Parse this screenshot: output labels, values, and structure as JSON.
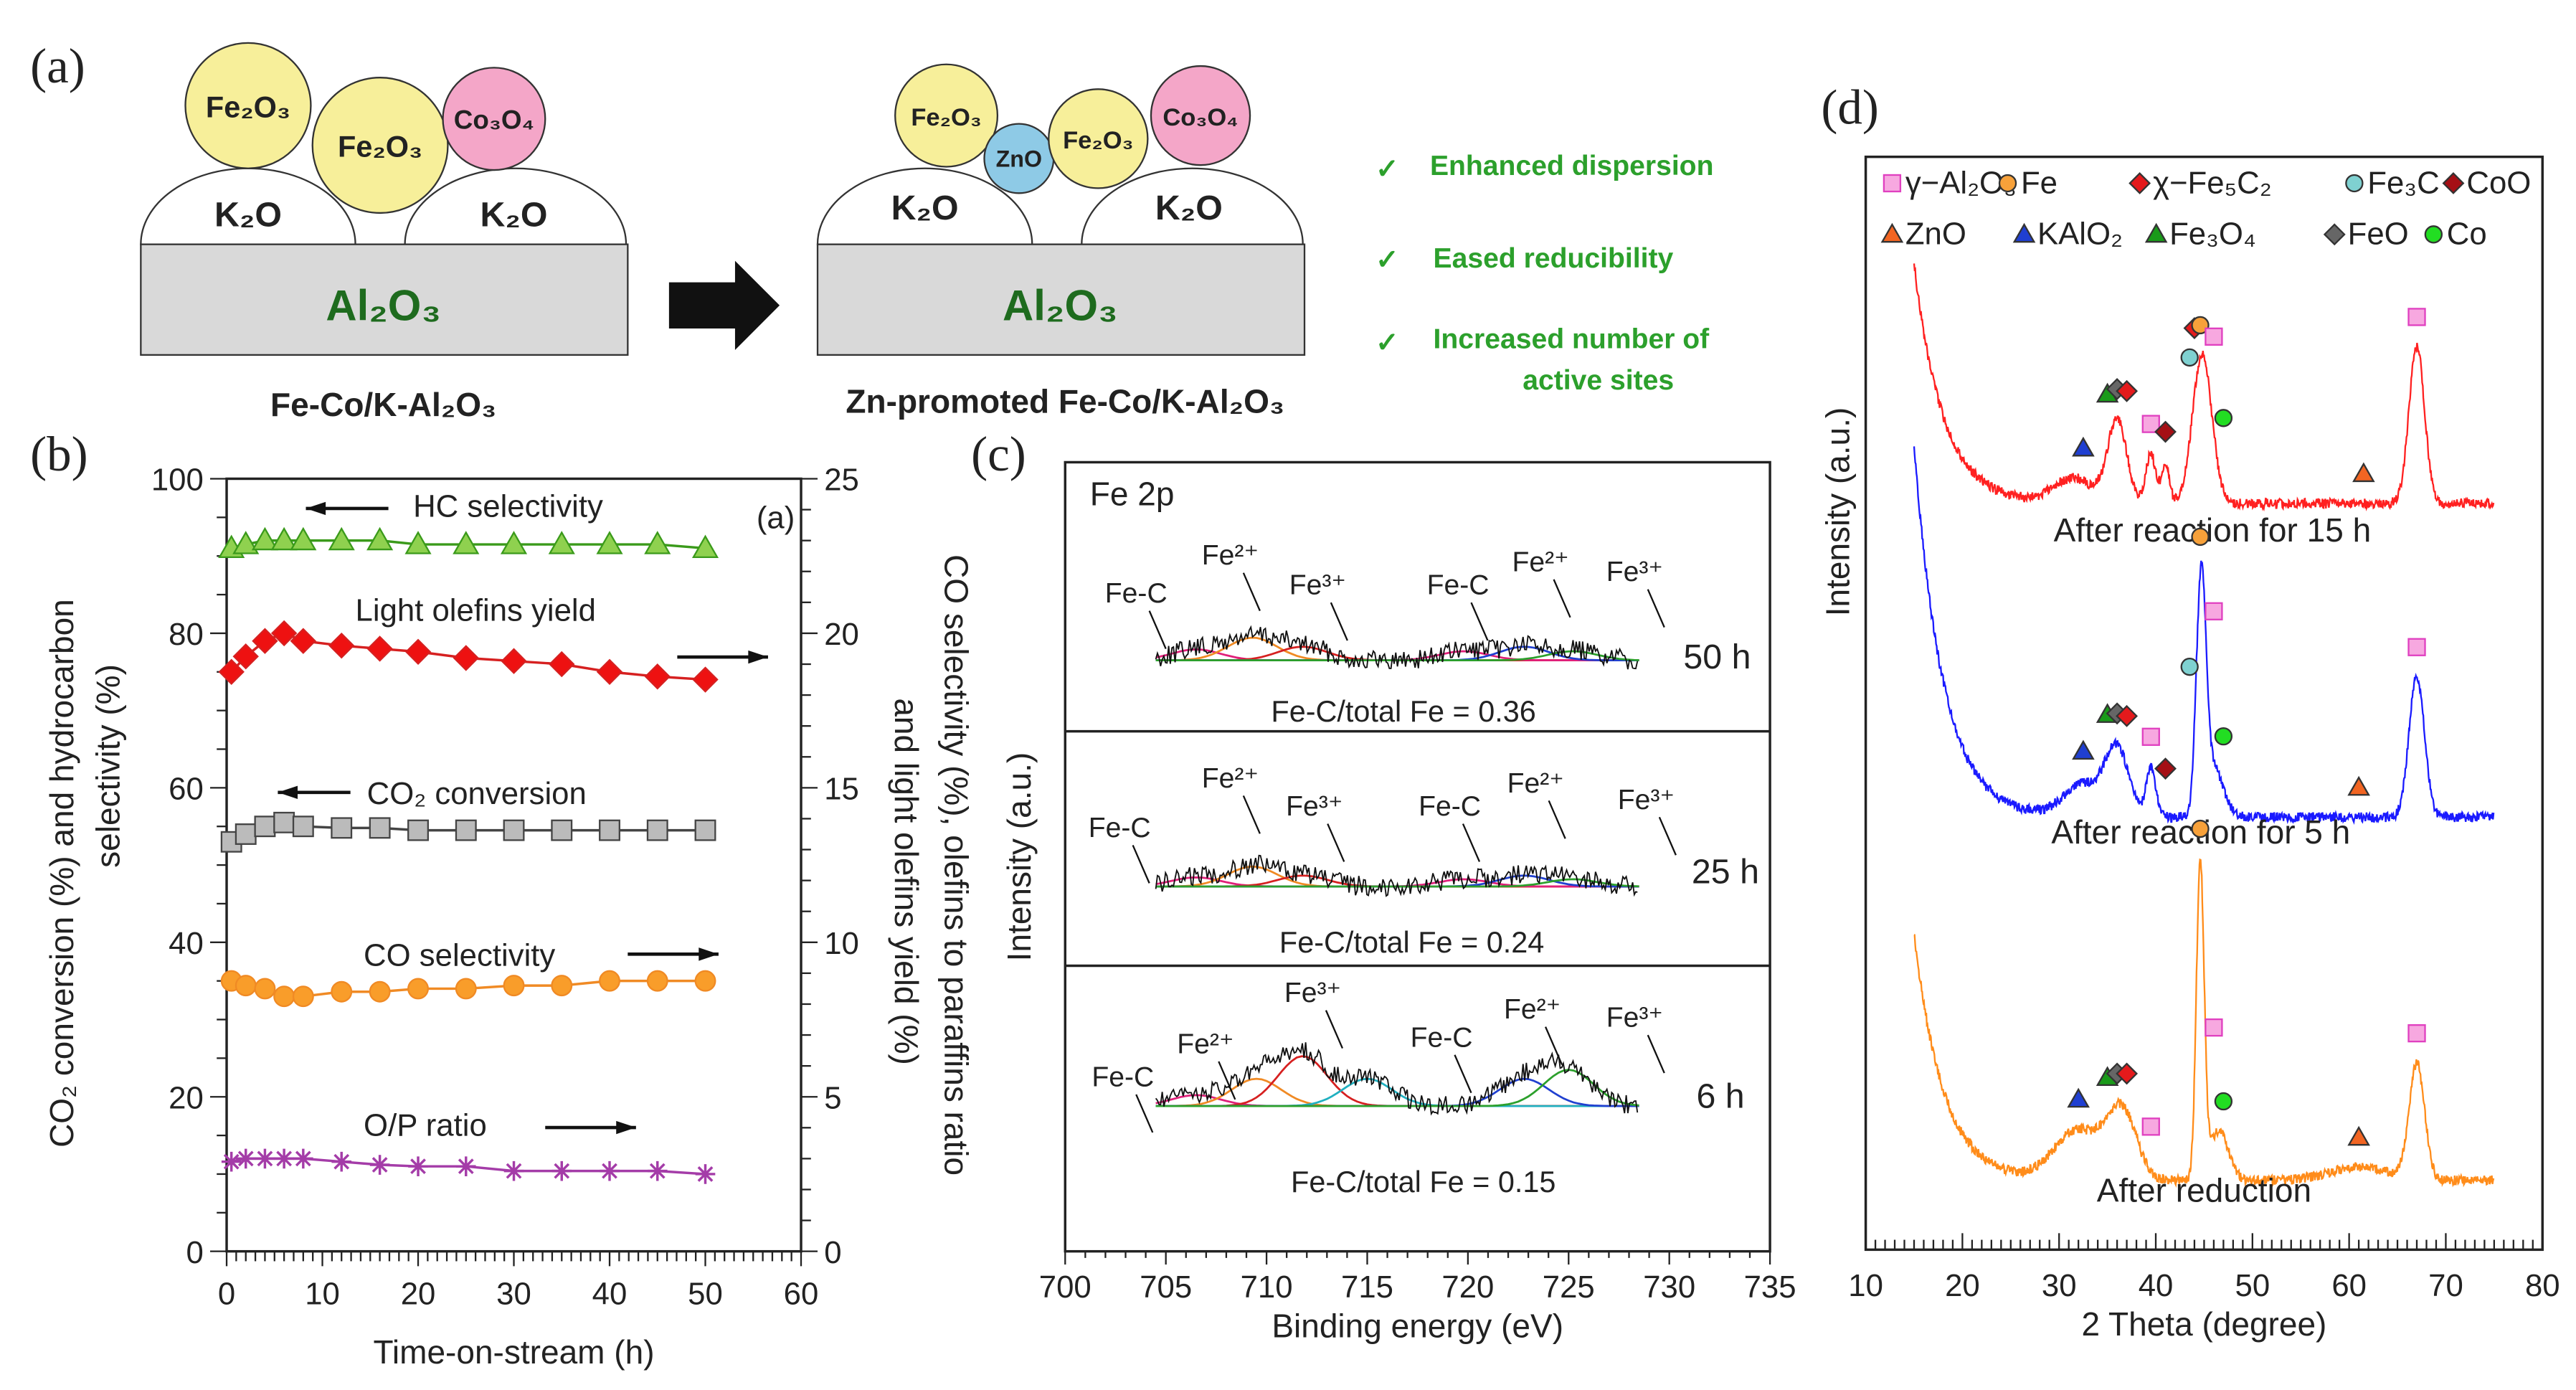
{
  "panel_a": {
    "label": "(a)",
    "left": {
      "support": "Al₂O₃",
      "promoter": [
        "K₂O",
        "K₂O"
      ],
      "particles": [
        "Fe₂O₃",
        "Fe₂O₃",
        "Co₃O₄"
      ],
      "caption": "Fe-Co/K-Al₂O₃"
    },
    "right": {
      "support": "Al₂O₃",
      "promoter": [
        "K₂O",
        "K₂O"
      ],
      "particles": [
        "Fe₂O₃",
        "ZnO",
        "Fe₂O₃",
        "Co₃O₄"
      ],
      "caption": "Zn-promoted Fe-Co/K-Al₂O₃"
    },
    "check_mark": "✓",
    "benefits": [
      "Enhanced dispersion",
      "Eased reducibility",
      "Increased number of",
      "active sites"
    ],
    "colors": {
      "fe2o3": "#f7ef9a",
      "co3o4": "#f4a6c8",
      "zno": "#8ecae6",
      "support": "#d9d9d9",
      "text_green": "#1e6b1e",
      "benefit_green": "#2ca02c"
    }
  },
  "chart_data": [
    {
      "id": "b",
      "panel_label": "(b)",
      "type": "line",
      "xlabel": "Time-on-stream (h)",
      "ylabel_left": [
        "CO₂ conversion (%) and hydrocarbon",
        "selectivity (%)"
      ],
      "ylabel_right": [
        "CO selectivity (%), olefins to paraffins ratio",
        "and light olefins yield (%)"
      ],
      "inset_label": "(a)",
      "xlim": [
        0,
        60
      ],
      "ylim_left": [
        0,
        100
      ],
      "ylim_right": [
        0,
        25
      ],
      "xticks": [
        0,
        10,
        20,
        30,
        40,
        50,
        60
      ],
      "yticks_left": [
        0,
        20,
        40,
        60,
        80,
        100
      ],
      "yticks_right": [
        0,
        5,
        10,
        15,
        20,
        25
      ],
      "x": [
        0.5,
        2,
        4,
        6,
        8,
        12,
        16,
        20,
        25,
        30,
        35,
        40,
        45,
        50
      ],
      "series": [
        {
          "name": "HC selectivity",
          "axis": "left",
          "marker": "triangle",
          "color": "#3a9a1a",
          "fill": "#8fd14f",
          "values": [
            91,
            91.5,
            92,
            92,
            92,
            92,
            92,
            91.5,
            91.5,
            91.5,
            91.5,
            91.5,
            91.5,
            91
          ]
        },
        {
          "name": "Light olefins yield",
          "axis": "right",
          "marker": "diamond",
          "color": "#d62020",
          "fill": "#ee1111",
          "values": [
            18.75,
            19.25,
            19.75,
            20,
            19.75,
            19.6,
            19.5,
            19.4,
            19.2,
            19.1,
            19,
            18.75,
            18.6,
            18.5
          ]
        },
        {
          "name": "CO₂ conversion",
          "axis": "left",
          "marker": "square",
          "color": "#444444",
          "fill": "#bbbbbb",
          "values": [
            53,
            54,
            55,
            55.5,
            55,
            54.8,
            54.8,
            54.5,
            54.5,
            54.5,
            54.5,
            54.5,
            54.5,
            54.5
          ]
        },
        {
          "name": "CO selectivity",
          "axis": "right",
          "marker": "circle",
          "color": "#f08a24",
          "fill": "#f99d2a",
          "values": [
            8.75,
            8.6,
            8.5,
            8.25,
            8.25,
            8.4,
            8.4,
            8.5,
            8.5,
            8.6,
            8.6,
            8.75,
            8.75,
            8.75
          ]
        },
        {
          "name": "O/P ratio",
          "axis": "right",
          "marker": "asterisk",
          "color": "#a43ca8",
          "fill": "#a43ca8",
          "values": [
            2.9,
            3,
            3,
            3,
            3,
            2.9,
            2.8,
            2.75,
            2.75,
            2.6,
            2.6,
            2.6,
            2.6,
            2.5
          ]
        }
      ],
      "annotations": [
        "HC selectivity",
        "Light olefins yield",
        "CO₂ conversion",
        "CO selectivity",
        "O/P ratio"
      ]
    },
    {
      "id": "c",
      "panel_label": "(c)",
      "type": "line",
      "title": "Fe 2p",
      "xlabel": "Binding energy (eV)",
      "ylabel": "Intensity (a.u.)",
      "xlim": [
        700,
        735
      ],
      "xticks": [
        700,
        705,
        710,
        715,
        720,
        725,
        730,
        735
      ],
      "spectra": [
        {
          "time": "50 h",
          "ratio_text": "Fe-C/total Fe = 0.36",
          "fe_c_ratio": 0.36,
          "peak_labels": [
            "Fe-C",
            "Fe²⁺",
            "Fe³⁺",
            "Fe-C",
            "Fe²⁺",
            "Fe³⁺"
          ],
          "components": [
            {
              "center": 706.5,
              "height": 0.12,
              "color": "#e0207a"
            },
            {
              "center": 709.3,
              "height": 0.25,
              "color": "#f08a24"
            },
            {
              "center": 711.8,
              "height": 0.15,
              "color": "#d62020"
            },
            {
              "center": 719.8,
              "height": 0.1,
              "color": "#e0207a"
            },
            {
              "center": 722.8,
              "height": 0.15,
              "color": "#2040d0"
            },
            {
              "center": 725.2,
              "height": 0.1,
              "color": "#2ca02c"
            }
          ]
        },
        {
          "time": "25 h",
          "ratio_text": "Fe-C/total Fe = 0.24",
          "fe_c_ratio": 0.24,
          "peak_labels": [
            "Fe-C",
            "Fe²⁺",
            "Fe³⁺",
            "Fe-C",
            "Fe²⁺",
            "Fe³⁺"
          ],
          "components": [
            {
              "center": 706.5,
              "height": 0.1,
              "color": "#e0207a"
            },
            {
              "center": 709.3,
              "height": 0.22,
              "color": "#f08a24"
            },
            {
              "center": 711.8,
              "height": 0.12,
              "color": "#d62020"
            },
            {
              "center": 719.8,
              "height": 0.08,
              "color": "#e0207a"
            },
            {
              "center": 722.8,
              "height": 0.12,
              "color": "#2040d0"
            },
            {
              "center": 725.2,
              "height": 0.08,
              "color": "#2ca02c"
            }
          ]
        },
        {
          "time": "6 h",
          "ratio_text": "Fe-C/total Fe = 0.15",
          "fe_c_ratio": 0.15,
          "peak_labels": [
            "Fe-C",
            "Fe²⁺",
            "Fe³⁺",
            "Fe-C",
            "Fe²⁺",
            "Fe³⁺"
          ],
          "components": [
            {
              "center": 706.5,
              "height": 0.12,
              "color": "#e0207a"
            },
            {
              "center": 709.5,
              "height": 0.3,
              "color": "#f08a24"
            },
            {
              "center": 711.8,
              "height": 0.55,
              "color": "#d62020"
            },
            {
              "center": 715,
              "height": 0.3,
              "color": "#20b0c0"
            },
            {
              "center": 722.8,
              "height": 0.3,
              "color": "#2040d0"
            },
            {
              "center": 725,
              "height": 0.4,
              "color": "#2ca02c"
            }
          ]
        }
      ]
    },
    {
      "id": "d",
      "panel_label": "(d)",
      "type": "line",
      "xlabel": "2 Theta (degree)",
      "ylabel": "Intensity (a.u.)",
      "xlim": [
        10,
        80
      ],
      "xticks": [
        10,
        20,
        30,
        40,
        50,
        60,
        70,
        80
      ],
      "legend_position": "top",
      "legend": [
        {
          "label": "γ−Al₂O₃",
          "shape": "square",
          "color": "#f7a8e0"
        },
        {
          "label": "Fe",
          "shape": "circle",
          "color": "#f7a13a"
        },
        {
          "label": "χ−Fe₅C₂",
          "shape": "diamond",
          "color": "#e41a1c"
        },
        {
          "label": "Fe₃C",
          "shape": "circle",
          "color": "#7fd1d1"
        },
        {
          "label": "CoO",
          "shape": "diamond",
          "color": "#a50f15"
        },
        {
          "label": "ZnO",
          "shape": "triangle",
          "color": "#f26522"
        },
        {
          "label": "KAlO₂",
          "shape": "triangle",
          "color": "#1f3fd1"
        },
        {
          "label": "Fe₃O₄",
          "shape": "triangle",
          "color": "#1a9a1a"
        },
        {
          "label": "FeO",
          "shape": "diamond",
          "color": "#666666"
        },
        {
          "label": "Co",
          "shape": "circle",
          "color": "#22dd22"
        }
      ],
      "series": [
        {
          "name": "After reaction for 15 h",
          "color": "#ff2020",
          "peaks": [
            [
              31.5,
              0.15,
              2
            ],
            [
              36,
              0.5,
              1
            ],
            [
              39.5,
              0.3,
              0.5
            ],
            [
              41,
              0.25,
              0.4
            ],
            [
              44.8,
              0.9,
              1
            ],
            [
              67,
              0.95,
              0.8
            ]
          ],
          "markers": [
            [
              "KAlO₂",
              32.5
            ],
            [
              "Fe₃O₄",
              35
            ],
            [
              "FeO",
              36
            ],
            [
              "χ−Fe₅C₂",
              37
            ],
            [
              "γ−Al₂O₃",
              39.5
            ],
            [
              "CoO",
              41
            ],
            [
              "Fe₃C",
              43.5
            ],
            [
              "χ−Fe₅C₂",
              44
            ],
            [
              "Fe",
              44.6
            ],
            [
              "γ−Al₂O₃",
              46
            ],
            [
              "Co",
              47
            ],
            [
              "ZnO",
              61.5
            ],
            [
              "γ−Al₂O₃",
              67
            ]
          ]
        },
        {
          "name": "After reaction for 5 h",
          "color": "#1a1aff",
          "peaks": [
            [
              32.5,
              0.2,
              2
            ],
            [
              36,
              0.4,
              1.2
            ],
            [
              39.5,
              0.3,
              0.5
            ],
            [
              44.7,
              1.4,
              0.5
            ],
            [
              46,
              0.3,
              1
            ],
            [
              67,
              0.85,
              0.8
            ]
          ],
          "markers": [
            [
              "KAlO₂",
              32.5
            ],
            [
              "Fe₃O₄",
              35
            ],
            [
              "FeO",
              36
            ],
            [
              "χ−Fe₅C₂",
              37
            ],
            [
              "γ−Al₂O₃",
              39.5
            ],
            [
              "CoO",
              41
            ],
            [
              "Fe₃C",
              43.5
            ],
            [
              "Fe",
              44.6
            ],
            [
              "γ−Al₂O₃",
              46
            ],
            [
              "Co",
              47
            ],
            [
              "ZnO",
              61
            ],
            [
              "γ−Al₂O₃",
              67
            ]
          ]
        },
        {
          "name": "After reduction",
          "color": "#ff8c1a",
          "peaks": [
            [
              32,
              0.3,
              2.5
            ],
            [
              36.5,
              0.4,
              1.5
            ],
            [
              44.6,
              1.9,
              0.4
            ],
            [
              46.5,
              0.3,
              1
            ],
            [
              61,
              0.08,
              3
            ],
            [
              67,
              0.7,
              0.8
            ]
          ],
          "markers": [
            [
              "KAlO₂",
              32
            ],
            [
              "Fe₃O₄",
              35
            ],
            [
              "FeO",
              36
            ],
            [
              "χ−Fe₅C₂",
              37
            ],
            [
              "γ−Al₂O₃",
              39.5
            ],
            [
              "Fe",
              44.6
            ],
            [
              "γ−Al₂O₃",
              46
            ],
            [
              "Co",
              47
            ],
            [
              "ZnO",
              61
            ],
            [
              "γ−Al₂O₃",
              67
            ]
          ]
        }
      ]
    }
  ]
}
